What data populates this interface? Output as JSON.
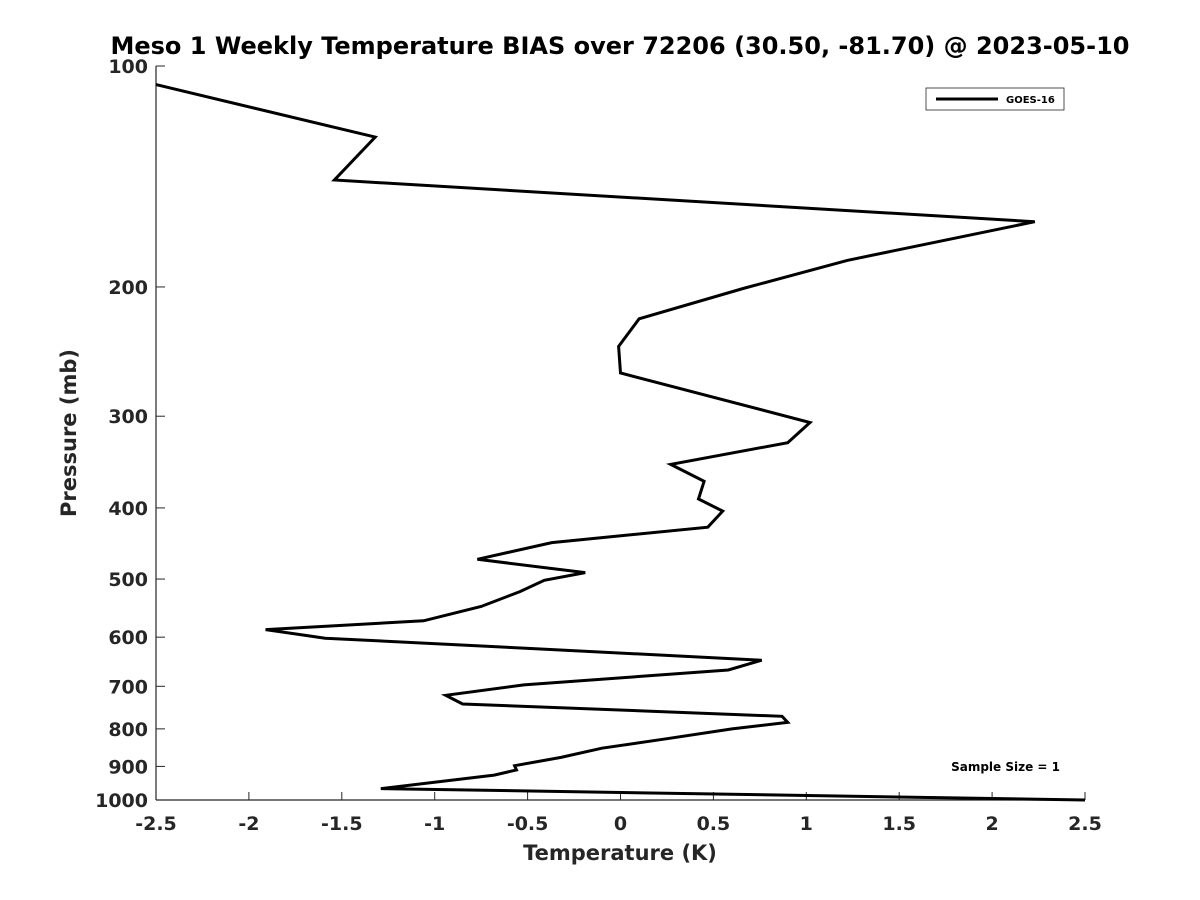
{
  "chart_data": {
    "type": "line",
    "title": "Meso 1 Weekly Temperature BIAS over 72206 (30.50, -81.70) @ 2023-05-10",
    "xlabel": "Temperature (K)",
    "ylabel": "Pressure (mb)",
    "xlim": [
      -2.5,
      2.5
    ],
    "ylim": [
      100,
      1000
    ],
    "y_scale": "log",
    "y_reversed": true,
    "grid": false,
    "legend_position": "top-right",
    "x_ticks": [
      -2.5,
      -2,
      -1.5,
      -1,
      -0.5,
      0,
      0.5,
      1,
      1.5,
      2,
      2.5
    ],
    "x_tick_labels": [
      "-2.5",
      "-2",
      "-1.5",
      "-1",
      "-0.5",
      "0",
      "0.5",
      "1",
      "1.5",
      "2",
      "2.5"
    ],
    "y_ticks": [
      100,
      200,
      300,
      400,
      500,
      600,
      700,
      800,
      900,
      1000
    ],
    "y_tick_labels": [
      "100",
      "200",
      "300",
      "400",
      "500",
      "600",
      "700",
      "800",
      "900",
      "1000"
    ],
    "annotation": "Sample Size = 1",
    "series": [
      {
        "name": "GOES-16",
        "color": "#000000",
        "points": [
          {
            "x": -2.5,
            "y": 106
          },
          {
            "x": -1.32,
            "y": 125
          },
          {
            "x": -1.54,
            "y": 143
          },
          {
            "x": 2.23,
            "y": 163
          },
          {
            "x": 1.22,
            "y": 184
          },
          {
            "x": 0.66,
            "y": 201
          },
          {
            "x": 0.1,
            "y": 221
          },
          {
            "x": -0.01,
            "y": 241
          },
          {
            "x": 0.0,
            "y": 262
          },
          {
            "x": 1.02,
            "y": 306
          },
          {
            "x": 0.9,
            "y": 326
          },
          {
            "x": 0.27,
            "y": 349
          },
          {
            "x": 0.45,
            "y": 368
          },
          {
            "x": 0.42,
            "y": 389
          },
          {
            "x": 0.55,
            "y": 404
          },
          {
            "x": 0.47,
            "y": 425
          },
          {
            "x": -0.37,
            "y": 446
          },
          {
            "x": -0.77,
            "y": 470
          },
          {
            "x": -0.19,
            "y": 490
          },
          {
            "x": -0.41,
            "y": 502
          },
          {
            "x": -0.54,
            "y": 520
          },
          {
            "x": -0.75,
            "y": 545
          },
          {
            "x": -1.06,
            "y": 570
          },
          {
            "x": -1.91,
            "y": 586
          },
          {
            "x": -1.59,
            "y": 602
          },
          {
            "x": -0.47,
            "y": 622
          },
          {
            "x": 0.76,
            "y": 645
          },
          {
            "x": 0.58,
            "y": 665
          },
          {
            "x": -0.52,
            "y": 697
          },
          {
            "x": -0.94,
            "y": 720
          },
          {
            "x": -0.85,
            "y": 740
          },
          {
            "x": 0.87,
            "y": 769
          },
          {
            "x": 0.9,
            "y": 784
          },
          {
            "x": 0.6,
            "y": 800
          },
          {
            "x": 0.25,
            "y": 825
          },
          {
            "x": -0.1,
            "y": 850
          },
          {
            "x": -0.32,
            "y": 875
          },
          {
            "x": -0.57,
            "y": 898
          },
          {
            "x": -0.56,
            "y": 910
          },
          {
            "x": -0.68,
            "y": 925
          },
          {
            "x": -1.29,
            "y": 965
          },
          {
            "x": 2.5,
            "y": 1000
          }
        ]
      }
    ]
  }
}
